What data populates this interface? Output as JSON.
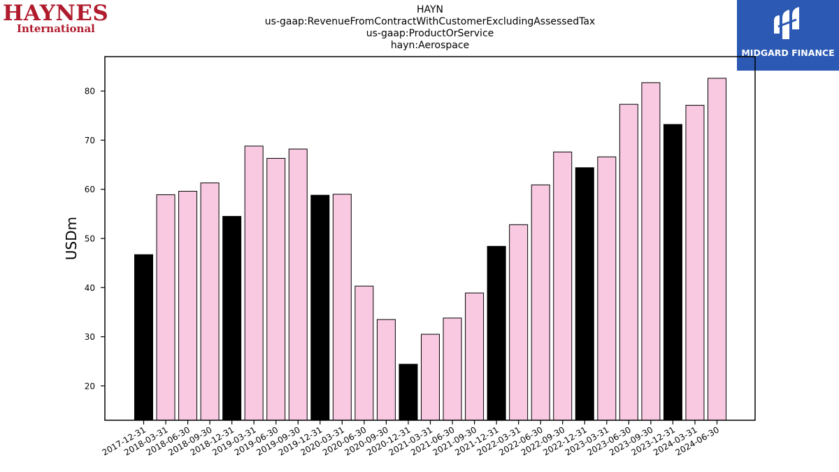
{
  "logos": {
    "left_line1": "HAYNES",
    "left_line2": "International",
    "right_brand": "MIDGARD FINANCE"
  },
  "title_lines": [
    "HAYN",
    "us-gaap:RevenueFromContractWithCustomerExcludingAssessedTax",
    "us-gaap:ProductOrService",
    "hayn:Aerospace"
  ],
  "colors": {
    "highlight_bar": "#000000",
    "normal_bar": "#f9c9e2",
    "bar_edge": "#000000"
  },
  "chart_data": {
    "type": "bar",
    "ylabel": "USDm",
    "ylim": [
      13,
      87
    ],
    "yticks": [
      20,
      30,
      40,
      50,
      60,
      70,
      80
    ],
    "grid": false,
    "categories": [
      "2017-12-31",
      "2018-03-31",
      "2018-06-30",
      "2018-09-30",
      "2018-12-31",
      "2019-03-31",
      "2019-06-30",
      "2019-09-30",
      "2019-12-31",
      "2020-03-31",
      "2020-06-30",
      "2020-09-30",
      "2020-12-31",
      "2021-03-31",
      "2021-06-30",
      "2021-09-30",
      "2021-12-31",
      "2022-03-31",
      "2022-06-30",
      "2022-09-30",
      "2022-12-31",
      "2023-03-31",
      "2023-06-30",
      "2023-09-30",
      "2023-12-31",
      "2024-03-31",
      "2024-06-30"
    ],
    "values": [
      46.7,
      58.9,
      59.6,
      61.3,
      54.5,
      68.8,
      66.3,
      68.2,
      58.8,
      59.0,
      40.3,
      33.5,
      24.4,
      30.5,
      33.8,
      38.9,
      48.4,
      52.8,
      60.9,
      67.6,
      64.4,
      66.6,
      77.3,
      81.7,
      73.2,
      77.1,
      82.6
    ],
    "highlighted": [
      true,
      false,
      false,
      false,
      true,
      false,
      false,
      false,
      true,
      false,
      false,
      false,
      true,
      false,
      false,
      false,
      true,
      false,
      false,
      false,
      true,
      false,
      false,
      false,
      true,
      false,
      false
    ]
  }
}
